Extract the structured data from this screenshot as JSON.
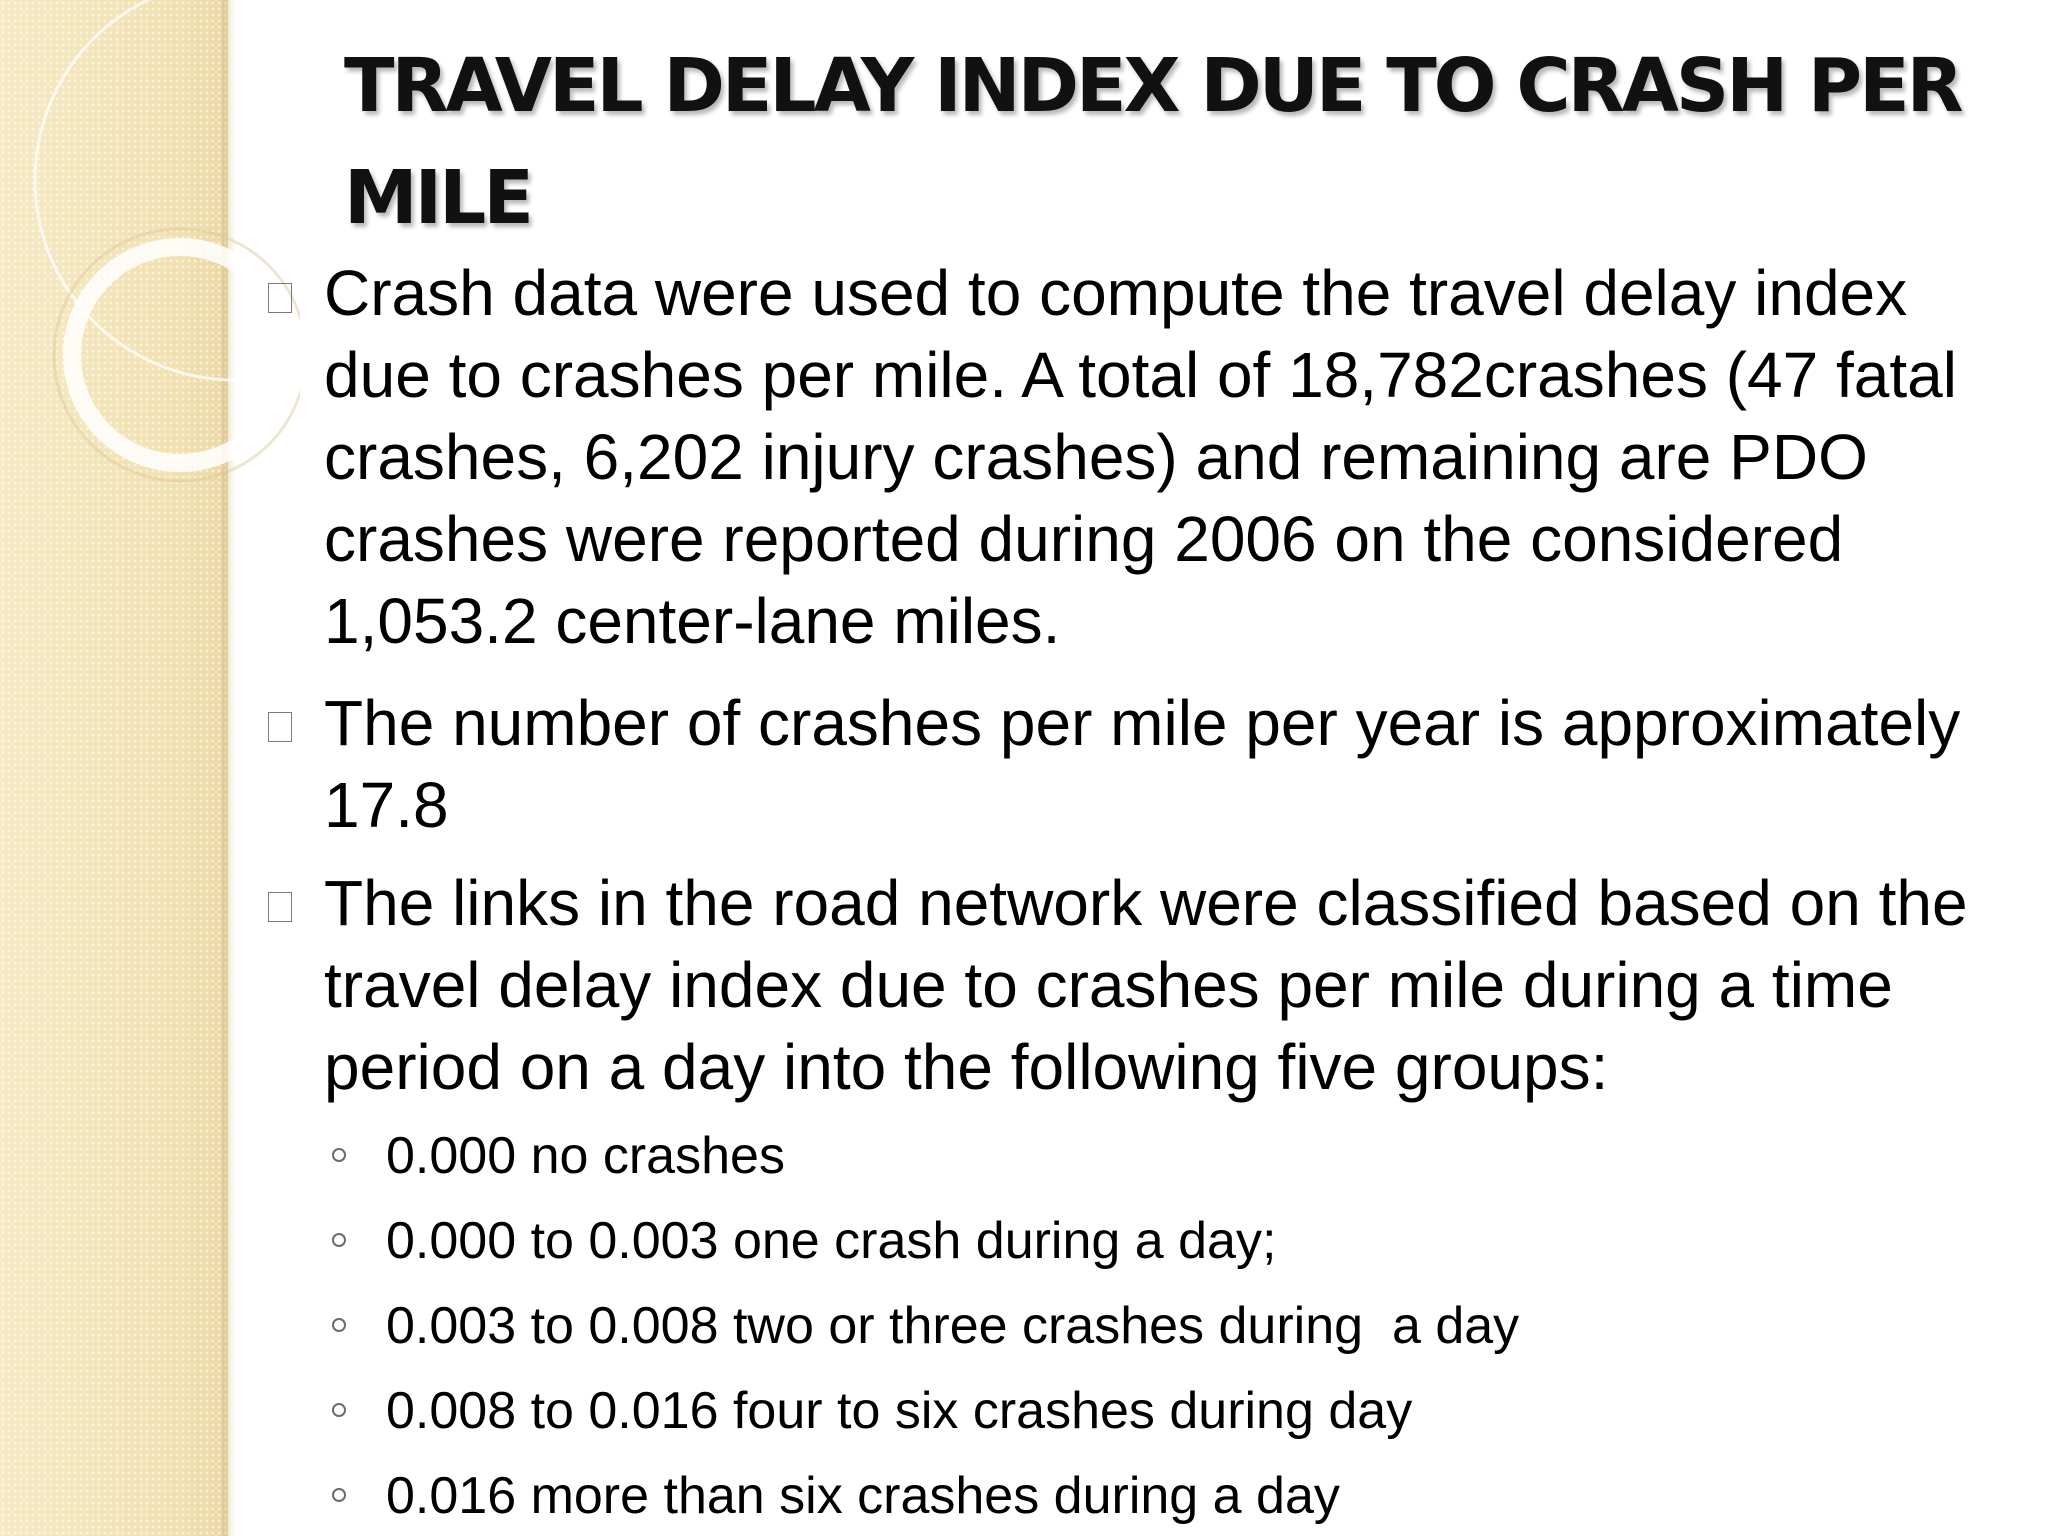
{
  "title": "TRAVEL DELAY INDEX DUE TO CRASH PER MILE",
  "bullets": [
    "Crash data were used to compute the travel delay index due to crashes per mile. A total of 18,782crashes (47 fatal crashes, 6,202 injury crashes) and remaining are PDO crashes were reported during 2006 on the considered 1,053.2 center-lane miles.",
    " The number of crashes per mile per year is approximately 17.8",
    "The links in the road network were classified based on the travel delay index due to crashes per mile during a time period on a day into the following five groups:"
  ],
  "sub_bullets": [
    "0.000 no crashes",
    "0.000 to 0.003 one crash during a day;",
    "0.003 to 0.008 two or three crashes during  a day",
    "0.008 to 0.016 four to six crashes during day",
    "0.016 more than six crashes during a day"
  ],
  "colors": {
    "side_panel": "#f3e4b8",
    "text": "#000000",
    "title": "#111111"
  }
}
